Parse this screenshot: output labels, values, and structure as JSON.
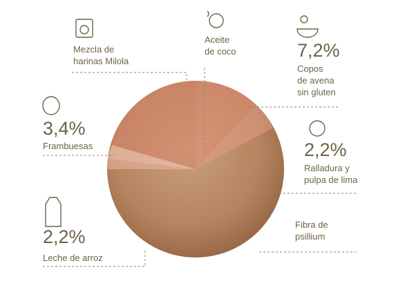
{
  "labels": [
    {
      "lines": [
        "Mezcla de",
        "harinas Milola"
      ]
    },
    {
      "lines": [
        "Aceite",
        "de coco"
      ]
    },
    {
      "percent": "7,2%",
      "lines": [
        "Copos",
        "de avena",
        "sin gluten"
      ]
    },
    {
      "percent": "3,4%",
      "lines": [
        "Frambuesas"
      ]
    },
    {
      "percent": "2,2%",
      "lines": [
        "Ralladura y",
        "pulpa de lima"
      ]
    },
    {
      "percent": "2,2%",
      "lines": [
        "Leche de arroz"
      ]
    },
    {
      "lines": [
        "Fibra de",
        "psillium"
      ]
    }
  ]
}
